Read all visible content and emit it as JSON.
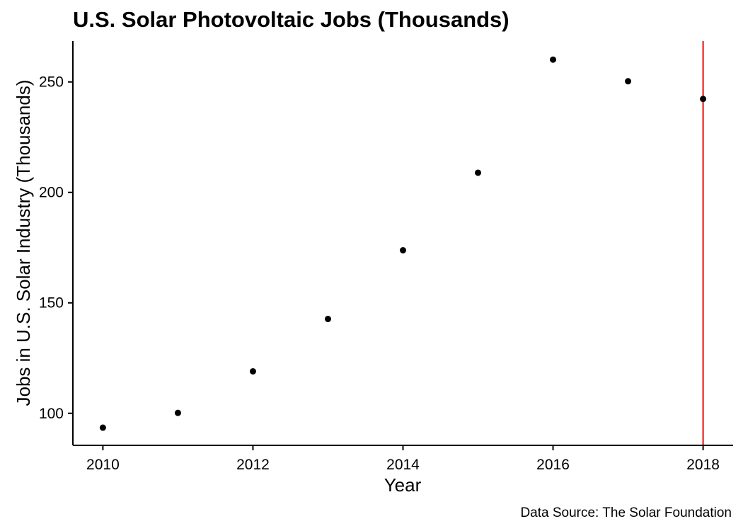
{
  "chart_data": {
    "type": "scatter",
    "title": "U.S. Solar Photovoltaic Jobs (Thousands)",
    "xlabel": "Year",
    "ylabel": "Jobs in U.S. Solar Industry (Thousands)",
    "caption": "Data Source: The Solar Foundation",
    "x": [
      2010,
      2011,
      2012,
      2013,
      2014,
      2015,
      2016,
      2017,
      2018
    ],
    "y": [
      93.5,
      100.2,
      119.0,
      142.7,
      173.8,
      208.9,
      260.1,
      250.3,
      242.3
    ],
    "xlim": [
      2009.6,
      2018.4
    ],
    "ylim": [
      85.5,
      268.5
    ],
    "x_ticks": [
      2010,
      2012,
      2014,
      2016,
      2018
    ],
    "y_ticks": [
      100,
      150,
      200,
      250
    ],
    "grid": false,
    "vline": {
      "x": 2018,
      "color": "#ff0000"
    },
    "point_color": "#000000"
  }
}
